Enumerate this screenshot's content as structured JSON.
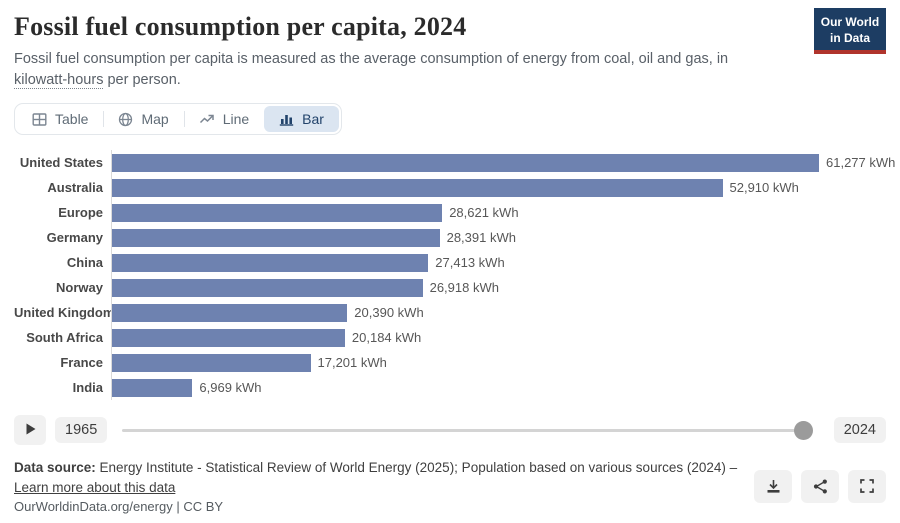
{
  "header": {
    "title": "Fossil fuel consumption per capita, 2024",
    "subtitle_part1": "Fossil fuel consumption per capita is measured as the average consumption of energy from coal, oil and gas, in ",
    "subtitle_term": "kilowatt-hours",
    "subtitle_part2": " per person.",
    "logo_line1": "Our World",
    "logo_line2": "in Data",
    "logo_bg_color": "#1d3d63",
    "logo_accent_color": "#b0342c"
  },
  "tabs": [
    {
      "label": "Table",
      "icon": "table-icon",
      "active": false
    },
    {
      "label": "Map",
      "icon": "globe-icon",
      "active": false
    },
    {
      "label": "Line",
      "icon": "line-chart-icon",
      "active": false
    },
    {
      "label": "Bar",
      "icon": "bar-chart-icon",
      "active": true
    }
  ],
  "chart_data": {
    "type": "bar",
    "orientation": "horizontal",
    "title": "Fossil fuel consumption per capita, 2024",
    "xlabel": "",
    "ylabel": "",
    "unit": "kWh",
    "xlim": [
      0,
      61277
    ],
    "grid": false,
    "bar_color": "#6e82b0",
    "categories": [
      "United States",
      "Australia",
      "Europe",
      "Germany",
      "China",
      "Norway",
      "United Kingdom",
      "South Africa",
      "France",
      "India"
    ],
    "values": [
      61277,
      52910,
      28621,
      28391,
      27413,
      26918,
      20390,
      20184,
      17201,
      6969
    ],
    "value_labels": [
      "61,277 kWh",
      "52,910 kWh",
      "28,621 kWh",
      "28,391 kWh",
      "27,413 kWh",
      "26,918 kWh",
      "20,390 kWh",
      "20,184 kWh",
      "17,201 kWh",
      "6,969 kWh"
    ]
  },
  "timeline": {
    "start_year": "1965",
    "end_year": "2024",
    "handle_position": "end",
    "play_icon": "play-icon"
  },
  "footer": {
    "source_label": "Data source:",
    "source_text": " Energy Institute - Statistical Review of World Energy (2025); Population based on various sources (2024) – ",
    "learn_more_label": "Learn more about this data",
    "citation": "OurWorldinData.org/energy | CC BY",
    "action_icons": [
      "download-icon",
      "share-icon",
      "fullscreen-icon"
    ]
  }
}
